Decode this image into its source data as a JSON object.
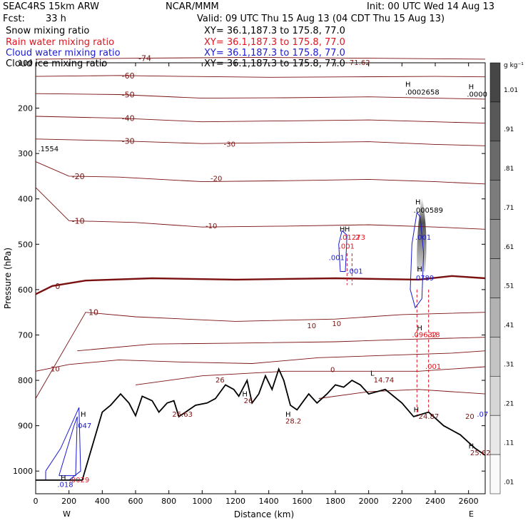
{
  "header": {
    "model": "SEAC4RS 15km ARW",
    "org": "NCAR/MMM",
    "init": "Init: 00 UTC Wed 14 Aug 13",
    "fcst_label": "Fcst:",
    "fcst_value": "33 h",
    "valid": "Valid: 09 UTC Thu 15 Aug 13 (04 CDT Thu 15 Aug 13)"
  },
  "fields": [
    {
      "name": "Snow mixing ratio",
      "xy": "XY=  36.1,187.3 to 175.8, 77.0",
      "color": "#000000"
    },
    {
      "name": "Rain water mixing ratio",
      "xy": "XY=  36.1,187.3 to 175.8, 77.0",
      "color": "#e0141e"
    },
    {
      "name": "Cloud water mixing ratio",
      "xy": "XY=  36.1,187.3 to 175.8, 77.0",
      "color": "#1a1ad2"
    },
    {
      "name": "Cloud ice mixing ratio",
      "xy": "XY=  36.1,187.3 to 175.8, 77.0",
      "color": "#000000"
    }
  ],
  "colors": {
    "temp_contour": "#7a1010",
    "terrain": "#000000",
    "rain": "#e0141e",
    "cloud": "#1a1ad2"
  },
  "chart_data": {
    "type": "cross-section",
    "xlabel": "Distance (km)",
    "ylabel": "Pressure (hPa)",
    "xlim": [
      0,
      2700
    ],
    "ylim": [
      1050,
      100
    ],
    "x_ticks": [
      "0",
      "200",
      "400",
      "600",
      "800",
      "1000",
      "1200",
      "1400",
      "1600",
      "1800",
      "2000",
      "2200",
      "2400",
      "2600"
    ],
    "y_ticks": [
      "100",
      "200",
      "300",
      "400",
      "500",
      "600",
      "700",
      "800",
      "900",
      "1000"
    ],
    "x_end_labels": {
      "left": "W",
      "right": "E"
    },
    "colorbar": {
      "unit": "g kg⁻¹",
      "labels": [
        "1.01",
        ".91",
        ".81",
        ".71",
        ".61",
        ".51",
        ".41",
        ".31",
        ".21",
        ".11",
        ".01"
      ]
    },
    "temperature_contours": [
      {
        "label": "-74",
        "points": [
          [
            0,
            92
          ],
          [
            600,
            90
          ],
          [
            1300,
            88
          ],
          [
            2000,
            90
          ],
          [
            2700,
            92
          ]
        ]
      },
      {
        "label": "-60",
        "points": [
          [
            0,
            130
          ],
          [
            500,
            128
          ],
          [
            900,
            130
          ],
          [
            1400,
            132
          ],
          [
            1900,
            131
          ],
          [
            2400,
            130
          ],
          [
            2700,
            131
          ]
        ]
      },
      {
        "label": "-50",
        "points": [
          [
            0,
            168
          ],
          [
            500,
            170
          ],
          [
            1000,
            178
          ],
          [
            1500,
            177
          ],
          [
            2000,
            175
          ],
          [
            2400,
            178
          ],
          [
            2700,
            180
          ]
        ]
      },
      {
        "label": "-40",
        "points": [
          [
            0,
            218
          ],
          [
            500,
            222
          ],
          [
            1000,
            230
          ],
          [
            1500,
            228
          ],
          [
            2000,
            226
          ],
          [
            2400,
            230
          ],
          [
            2700,
            233
          ]
        ]
      },
      {
        "label": "-30",
        "points": [
          [
            0,
            268
          ],
          [
            500,
            272
          ],
          [
            1000,
            278
          ],
          [
            1500,
            276
          ],
          [
            2000,
            274
          ],
          [
            2400,
            280
          ],
          [
            2700,
            283
          ]
        ]
      },
      {
        "label": "-20",
        "points": [
          [
            0,
            318
          ],
          [
            200,
            350
          ],
          [
            500,
            352
          ],
          [
            1000,
            362
          ],
          [
            1500,
            360
          ],
          [
            2000,
            357
          ],
          [
            2400,
            362
          ],
          [
            2700,
            367
          ]
        ]
      },
      {
        "label": "-10",
        "points": [
          [
            0,
            375
          ],
          [
            200,
            448
          ],
          [
            600,
            452
          ],
          [
            1000,
            462
          ],
          [
            1500,
            460
          ],
          [
            2000,
            457
          ],
          [
            2400,
            462
          ],
          [
            2700,
            467
          ]
        ]
      },
      {
        "label": "0",
        "points": [
          [
            0,
            610
          ],
          [
            100,
            592
          ],
          [
            300,
            580
          ],
          [
            700,
            575
          ],
          [
            1200,
            578
          ],
          [
            1800,
            575
          ],
          [
            2300,
            578
          ],
          [
            2500,
            570
          ],
          [
            2700,
            575
          ]
        ]
      },
      {
        "label": "10",
        "points": [
          [
            0,
            840
          ],
          [
            300,
            650
          ],
          [
            600,
            660
          ],
          [
            1200,
            670
          ],
          [
            1800,
            665
          ],
          [
            2200,
            655
          ],
          [
            2700,
            650
          ]
        ]
      },
      {
        "label": "",
        "points": [
          [
            0,
            780
          ],
          [
            200,
            765
          ],
          [
            500,
            755
          ],
          [
            900,
            760
          ],
          [
            1300,
            763
          ],
          [
            1700,
            750
          ],
          [
            2100,
            745
          ],
          [
            2500,
            740
          ],
          [
            2700,
            735
          ]
        ]
      },
      {
        "label": "",
        "points": [
          [
            250,
            735
          ],
          [
            700,
            720
          ],
          [
            1200,
            718
          ],
          [
            1800,
            715
          ],
          [
            2200,
            710
          ],
          [
            2700,
            705
          ]
        ]
      },
      {
        "label": "",
        "points": [
          [
            600,
            810
          ],
          [
            1000,
            790
          ],
          [
            1500,
            780
          ],
          [
            1900,
            780
          ],
          [
            2300,
            780
          ],
          [
            2700,
            770
          ]
        ]
      },
      {
        "label": "",
        "points": [
          [
            1700,
            840
          ],
          [
            2000,
            825
          ],
          [
            2300,
            820
          ],
          [
            2700,
            830
          ]
        ]
      }
    ],
    "terrain": [
      [
        0,
        1020
      ],
      [
        280,
        1020
      ],
      [
        400,
        870
      ],
      [
        450,
        855
      ],
      [
        510,
        830
      ],
      [
        560,
        850
      ],
      [
        600,
        878
      ],
      [
        640,
        835
      ],
      [
        700,
        845
      ],
      [
        740,
        870
      ],
      [
        790,
        850
      ],
      [
        830,
        845
      ],
      [
        860,
        880
      ],
      [
        900,
        870
      ],
      [
        960,
        855
      ],
      [
        1030,
        850
      ],
      [
        1080,
        840
      ],
      [
        1140,
        810
      ],
      [
        1190,
        820
      ],
      [
        1220,
        835
      ],
      [
        1270,
        800
      ],
      [
        1300,
        850
      ],
      [
        1340,
        830
      ],
      [
        1380,
        790
      ],
      [
        1420,
        820
      ],
      [
        1460,
        775
      ],
      [
        1490,
        800
      ],
      [
        1530,
        855
      ],
      [
        1570,
        865
      ],
      [
        1600,
        850
      ],
      [
        1640,
        830
      ],
      [
        1690,
        850
      ],
      [
        1750,
        830
      ],
      [
        1800,
        810
      ],
      [
        1850,
        815
      ],
      [
        1900,
        800
      ],
      [
        1950,
        810
      ],
      [
        2000,
        830
      ],
      [
        2100,
        820
      ],
      [
        2200,
        850
      ],
      [
        2270,
        880
      ],
      [
        2360,
        870
      ],
      [
        2450,
        900
      ],
      [
        2550,
        920
      ],
      [
        2640,
        950
      ],
      [
        2700,
        965
      ]
    ],
    "annotations": [
      {
        "text": "-71.62",
        "x": 1870,
        "p": 105,
        "color": "#7a1010"
      },
      {
        "text": ".0002658",
        "x": 2220,
        "p": 170,
        "color": "#000000"
      },
      {
        "text": ".0000",
        "x": 2590,
        "p": 175,
        "color": "#000000"
      },
      {
        "text": ".1554",
        "x": 15,
        "p": 295,
        "color": "#000000"
      },
      {
        "text": ".000589",
        "x": 2270,
        "p": 430,
        "color": "#000000"
      },
      {
        "text": ".001",
        "x": 1820,
        "p": 510,
        "color": "#e0141e"
      },
      {
        "text": ".01273",
        "x": 1830,
        "p": 490,
        "color": "#e0141e"
      },
      {
        "text": "2",
        "x": 1920,
        "p": 490,
        "color": "#e0141e"
      },
      {
        "text": ".001",
        "x": 1760,
        "p": 535,
        "color": "#1a1ad2"
      },
      {
        "text": ".001",
        "x": 1870,
        "p": 565,
        "color": "#1a1ad2"
      },
      {
        "text": ".001",
        "x": 2280,
        "p": 490,
        "color": "#1a1ad2"
      },
      {
        "text": ".0789",
        "x": 2270,
        "p": 580,
        "color": "#1a1ad2"
      },
      {
        "text": ".09632",
        "x": 2260,
        "p": 705,
        "color": "#e0141e"
      },
      {
        "text": ".18",
        "x": 2360,
        "p": 705,
        "color": "#e0141e"
      },
      {
        "text": ".001",
        "x": 2340,
        "p": 775,
        "color": "#e0141e"
      },
      {
        "text": "14.74",
        "x": 2030,
        "p": 805,
        "color": "#7a1010"
      },
      {
        "text": "26.63",
        "x": 820,
        "p": 880,
        "color": "#7a1010"
      },
      {
        "text": "26",
        "x": 1250,
        "p": 850,
        "color": "#7a1010"
      },
      {
        "text": "26",
        "x": 1080,
        "p": 805,
        "color": "#7a1010"
      },
      {
        "text": "28.2",
        "x": 1500,
        "p": 895,
        "color": "#7a1010"
      },
      {
        "text": "24.87",
        "x": 2300,
        "p": 885,
        "color": "#7a1010"
      },
      {
        "text": "25.62",
        "x": 2610,
        "p": 965,
        "color": "#7a1010"
      },
      {
        "text": "20",
        "x": 2580,
        "p": 885,
        "color": "#7a1010"
      },
      {
        "text": ".07",
        "x": 2650,
        "p": 880,
        "color": "#1a1ad2"
      },
      {
        "text": ".047",
        "x": 240,
        "p": 905,
        "color": "#1a1ad2"
      },
      {
        "text": ".018",
        "x": 130,
        "p": 1035,
        "color": "#1a1ad2"
      },
      {
        "text": ".0029",
        "x": 200,
        "p": 1025,
        "color": "#e0141e"
      },
      {
        "text": "10",
        "x": 90,
        "p": 780,
        "color": "#7a1010"
      },
      {
        "text": "10",
        "x": 1780,
        "p": 680,
        "color": "#7a1010"
      },
      {
        "text": "10",
        "x": 1630,
        "p": 685,
        "color": "#7a1010"
      },
      {
        "text": "0",
        "x": 1770,
        "p": 782,
        "color": "#7a1010"
      },
      {
        "text": "-20",
        "x": 1050,
        "p": 360,
        "color": "#7a1010"
      },
      {
        "text": "-30",
        "x": 1130,
        "p": 285,
        "color": "#7a1010"
      },
      {
        "text": "-10",
        "x": 1020,
        "p": 465,
        "color": "#7a1010"
      }
    ],
    "h_markers": [
      {
        "text": "H",
        "x": 2220,
        "p": 153
      },
      {
        "text": "H",
        "x": 2600,
        "p": 158
      },
      {
        "text": "H",
        "x": 2280,
        "p": 412
      },
      {
        "text": "H",
        "x": 2290,
        "p": 560
      },
      {
        "text": "H",
        "x": 2290,
        "p": 690
      },
      {
        "text": "H",
        "x": 2270,
        "p": 870
      },
      {
        "text": "H",
        "x": 2600,
        "p": 950
      },
      {
        "text": "H",
        "x": 1825,
        "p": 472
      },
      {
        "text": "H",
        "x": 1855,
        "p": 472
      },
      {
        "text": "H",
        "x": 1240,
        "p": 835
      },
      {
        "text": "H",
        "x": 1500,
        "p": 880
      },
      {
        "text": "H",
        "x": 270,
        "p": 880
      },
      {
        "text": "H",
        "x": 150,
        "p": 1020
      },
      {
        "text": "L",
        "x": 2010,
        "p": 790
      }
    ]
  }
}
